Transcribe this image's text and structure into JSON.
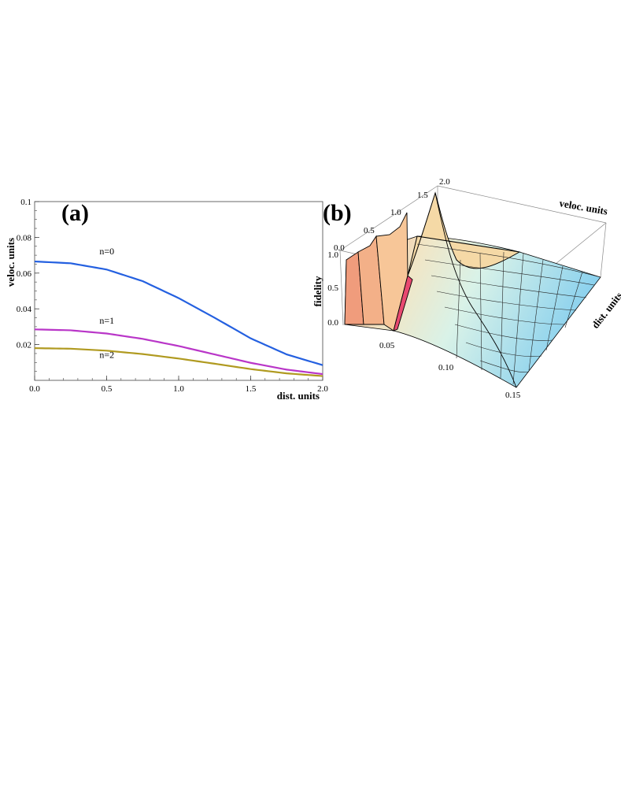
{
  "chart_data": [
    {
      "panel": "(a)",
      "type": "line",
      "xlabel": "dist. units",
      "ylabel": "veloc. units",
      "xlim": [
        0,
        2.0
      ],
      "ylim": [
        0,
        0.1
      ],
      "x_ticks": [
        "0.0",
        "0.5",
        "1.0",
        "1.5",
        "2.0"
      ],
      "y_ticks": [
        "0.02",
        "0.04",
        "0.06",
        "0.08",
        "0.1"
      ],
      "series": [
        {
          "name": "n=0",
          "color": "#2460e0",
          "x": [
            0,
            0.25,
            0.5,
            0.75,
            1.0,
            1.25,
            1.5,
            1.75,
            2.0
          ],
          "y": [
            0.0665,
            0.0655,
            0.062,
            0.0555,
            0.046,
            0.035,
            0.0235,
            0.0145,
            0.0085
          ]
        },
        {
          "name": "n=1",
          "color": "#b936c8",
          "x": [
            0,
            0.25,
            0.5,
            0.75,
            1.0,
            1.25,
            1.5,
            1.75,
            2.0
          ],
          "y": [
            0.0285,
            0.028,
            0.0262,
            0.0232,
            0.0192,
            0.0145,
            0.0098,
            0.006,
            0.0035
          ]
        },
        {
          "name": "n=2",
          "color": "#b09a20",
          "x": [
            0,
            0.25,
            0.5,
            0.75,
            1.0,
            1.25,
            1.5,
            1.75,
            2.0
          ],
          "y": [
            0.018,
            0.0177,
            0.0166,
            0.0147,
            0.0122,
            0.0093,
            0.0063,
            0.0039,
            0.0024
          ]
        }
      ],
      "grid": false
    },
    {
      "panel": "(b)",
      "type": "surface",
      "xlabel": "dist. units",
      "ylabel": "veloc. units",
      "zlabel": "fidelity",
      "dist_ticks": [
        "0.05",
        "0.10",
        "0.15"
      ],
      "veloc_ticks": [
        "0.0",
        "0.5",
        "1.0",
        "1.5",
        "2.0"
      ],
      "fidelity_ticks": [
        "0.0",
        "0.5",
        "1.0"
      ],
      "zlim": [
        0,
        1.0
      ]
    }
  ]
}
